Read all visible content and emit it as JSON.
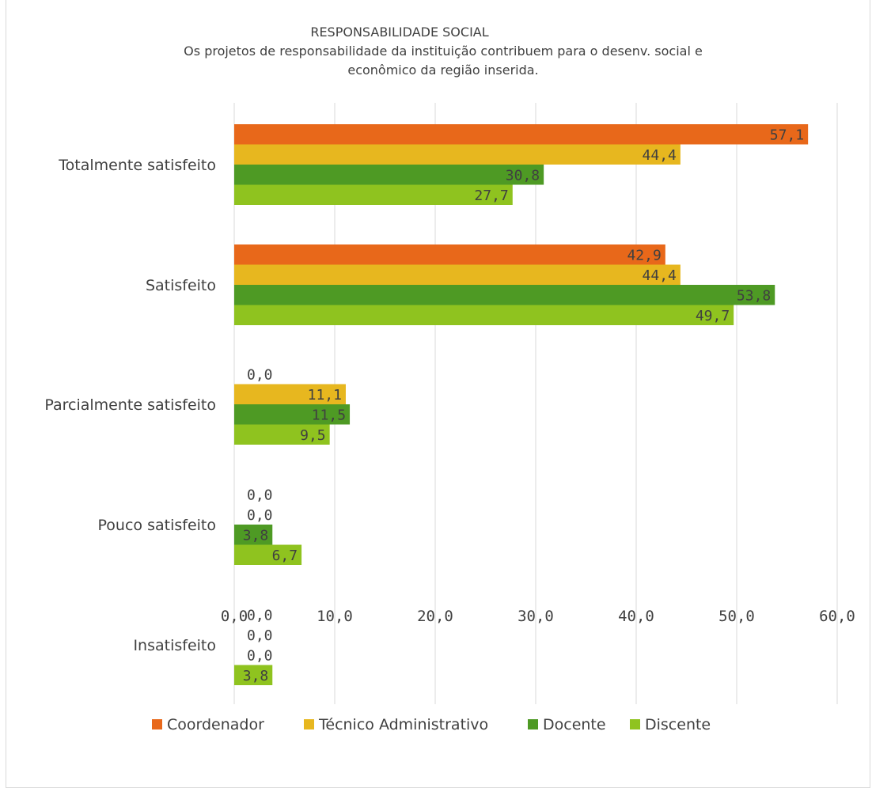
{
  "chart_data": {
    "type": "bar",
    "orientation": "horizontal",
    "title": "RESPONSABILIDADE SOCIAL",
    "subtitle_lines": [
      "Os projetos de responsabilidade da instituição contribuem para o desenv. social e",
      "econômico da região inserida."
    ],
    "categories": [
      "Totalmente satisfeito",
      "Satisfeito",
      "Parcialmente satisfeito",
      "Pouco satisfeito",
      "Insatisfeito"
    ],
    "series": [
      {
        "name": "Coordenador",
        "color": "#e8681a",
        "values": [
          57.1,
          42.9,
          0.0,
          0.0,
          0.0
        ],
        "labels": [
          "57,1",
          "42,9",
          "0,0",
          "0,0",
          "0,0"
        ]
      },
      {
        "name": "Técnico Administrativo",
        "color": "#e7b71f",
        "values": [
          44.4,
          44.4,
          11.1,
          0.0,
          0.0
        ],
        "labels": [
          "44,4",
          "44,4",
          "11,1",
          "0,0",
          "0,0"
        ]
      },
      {
        "name": "Docente",
        "color": "#4e9a24",
        "values": [
          30.8,
          53.8,
          11.5,
          3.8,
          0.0
        ],
        "labels": [
          "30,8",
          "53,8",
          "11,5",
          "3,8",
          "0,0"
        ]
      },
      {
        "name": "Discente",
        "color": "#8fc31f",
        "values": [
          27.7,
          49.7,
          9.5,
          6.7,
          3.8
        ],
        "labels": [
          "27,7",
          "49,7",
          "9,5",
          "6,7",
          "3,8"
        ]
      }
    ],
    "xlim": [
      0,
      60
    ],
    "x_ticks": [
      0,
      10,
      20,
      30,
      40,
      50,
      60
    ],
    "x_tick_labels": [
      "0,0",
      "10,0",
      "20,0",
      "30,0",
      "40,0",
      "50,0",
      "60,0"
    ],
    "grid": true,
    "legend_position": "bottom"
  }
}
